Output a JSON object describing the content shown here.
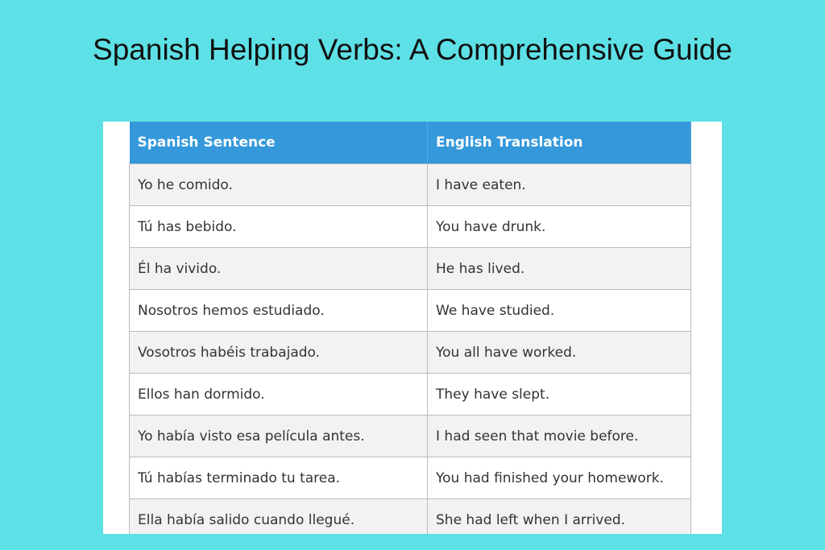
{
  "title": "Spanish Helping Verbs: A Comprehensive Guide",
  "table": {
    "headers": [
      "Spanish Sentence",
      "English Translation"
    ],
    "rows": [
      [
        "Yo he comido.",
        "I have eaten."
      ],
      [
        "Tú has bebido.",
        "You have drunk."
      ],
      [
        "Él ha vivido.",
        "He has lived."
      ],
      [
        "Nosotros hemos estudiado.",
        "We have studied."
      ],
      [
        "Vosotros habéis trabajado.",
        "You all have worked."
      ],
      [
        "Ellos han dormido.",
        "They have slept."
      ],
      [
        "Yo había visto esa película antes.",
        "I had seen that movie before."
      ],
      [
        "Tú habías terminado tu tarea.",
        "You had finished your homework."
      ],
      [
        "Ella había salido cuando llegué.",
        "She had left when I arrived."
      ]
    ]
  },
  "colors": {
    "background": "#5ee1e6",
    "header": "#3498db"
  }
}
